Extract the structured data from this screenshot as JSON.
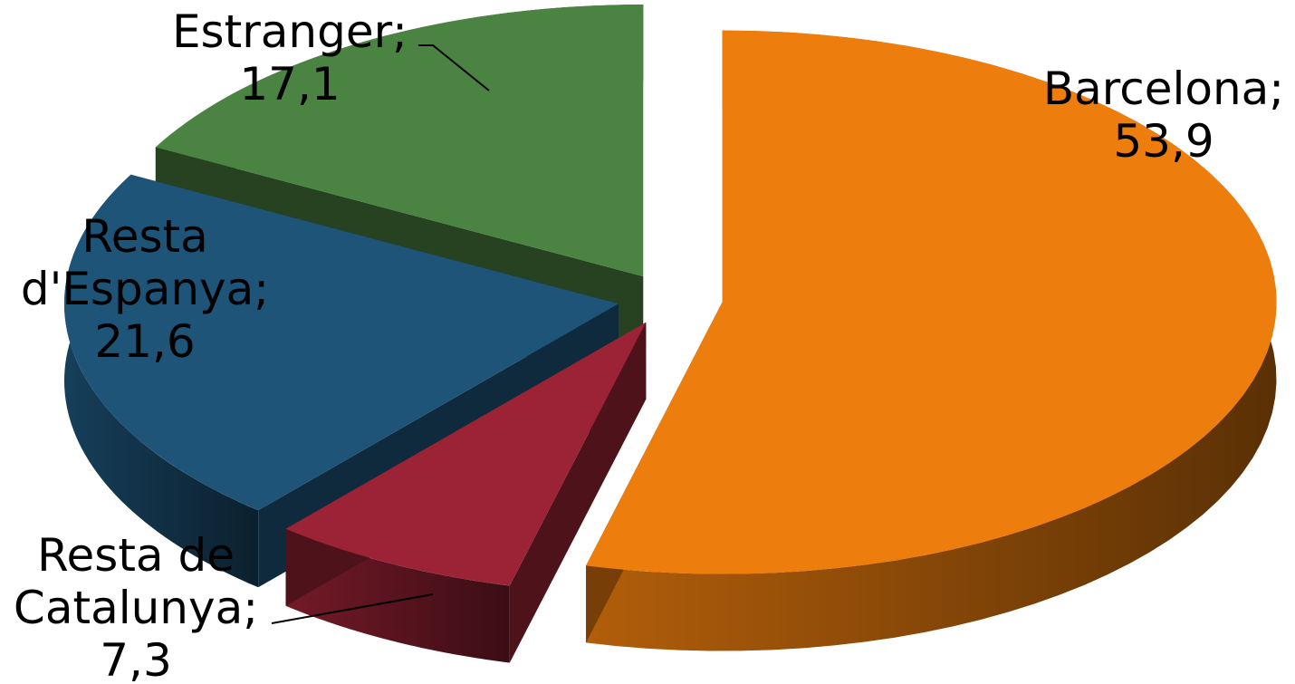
{
  "chart_data": {
    "type": "pie",
    "three_d": true,
    "exploded": true,
    "start_angle_deg": 0,
    "direction": "clockwise",
    "data_label_format": "{category}; {value}",
    "decimal_separator": ",",
    "slices": [
      {
        "category": "Barcelona",
        "value": 53.9,
        "color": "#ED7D0D",
        "label_lines": [
          "Barcelona;",
          "53,9"
        ]
      },
      {
        "category": "Resta de Catalunya",
        "value": 7.3,
        "color": "#9B2335",
        "label_lines": [
          "Resta de",
          "Catalunya;",
          "7,3"
        ]
      },
      {
        "category": "Resta d'Espanya",
        "value": 21.6,
        "color": "#1D5478",
        "label_lines": [
          "Resta",
          "d'Espanya;",
          "21,6"
        ]
      },
      {
        "category": "Estranger",
        "value": 17.1,
        "color": "#4B8442",
        "label_lines": [
          "Estranger;",
          "17,1"
        ]
      }
    ]
  }
}
